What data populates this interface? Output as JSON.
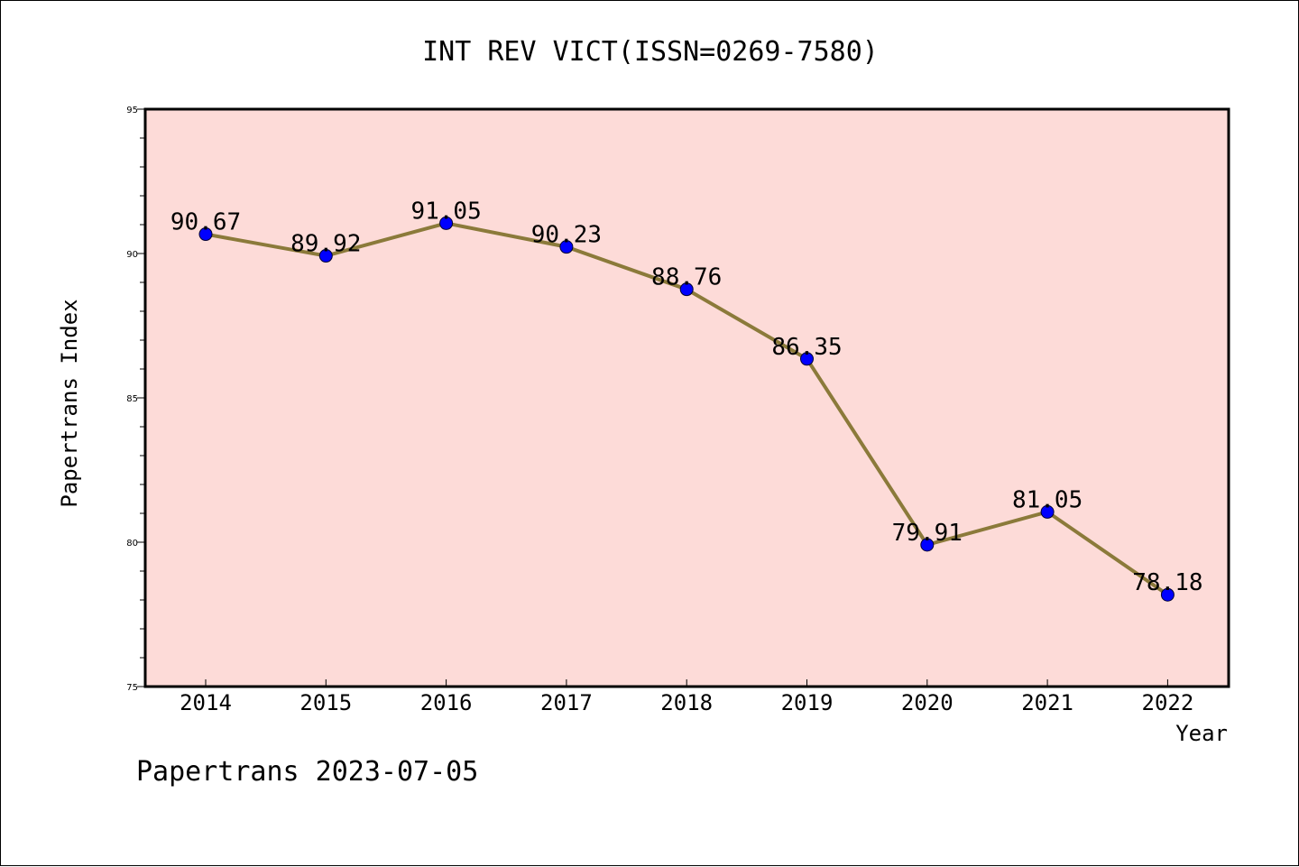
{
  "chart_data": {
    "type": "line",
    "title": "INT REV VICT(ISSN=0269-7580)",
    "xlabel": "Year",
    "ylabel": "Papertrans Index",
    "categories": [
      "2014",
      "2015",
      "2016",
      "2017",
      "2018",
      "2019",
      "2020",
      "2021",
      "2022"
    ],
    "series": [
      {
        "values": [
          90.67,
          89.92,
          91.05,
          90.23,
          88.76,
          86.35,
          79.91,
          81.05,
          78.18
        ],
        "labels": [
          "90.67",
          "89.92",
          "91.05",
          "90.23",
          "88.76",
          "86.35",
          "79.91",
          "81.05",
          "78.18"
        ],
        "line_color": "#8b7a3a",
        "marker_color": "#0000ff"
      }
    ],
    "ylim": [
      75,
      95
    ],
    "yticks": [
      "75",
      "80",
      "85",
      "90",
      "95"
    ],
    "plot_background": "#fddbd8",
    "grid": false
  },
  "footer": "Papertrans 2023-07-05"
}
